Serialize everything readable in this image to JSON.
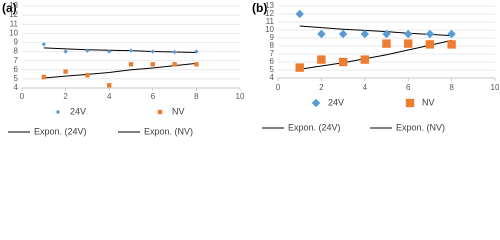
{
  "chart_data": [
    {
      "type": "scatter",
      "title": "(a)",
      "x": [
        1,
        2,
        3,
        4,
        5,
        6,
        7,
        8
      ],
      "series": [
        {
          "name": "24V",
          "color": "#5b9bd5",
          "marker": "diamond",
          "values": [
            8.8,
            8.0,
            8.1,
            8.0,
            8.1,
            8.0,
            7.95,
            8.0
          ]
        },
        {
          "name": "NV",
          "color": "#ed7d31",
          "marker": "square",
          "values": [
            5.2,
            5.8,
            5.4,
            4.3,
            6.6,
            6.6,
            6.6,
            6.6
          ]
        }
      ],
      "trendlines": [
        {
          "name": "Expon. (24V)",
          "color": "#000000",
          "values": [
            8.4,
            8.3,
            8.2,
            8.15,
            8.1,
            8.0,
            7.95,
            7.9
          ]
        },
        {
          "name": "Expon. (NV)",
          "color": "#000000",
          "values": [
            5.1,
            5.3,
            5.5,
            5.7,
            6.0,
            6.2,
            6.45,
            6.7
          ]
        }
      ],
      "xlim": [
        0,
        10
      ],
      "ylim": [
        4,
        13
      ],
      "xticks": [
        0,
        2,
        4,
        6,
        8,
        10
      ],
      "yticks": [
        4,
        5,
        6,
        7,
        8,
        9,
        10,
        11,
        12,
        13
      ],
      "grid": true
    },
    {
      "type": "scatter",
      "title": "(b)",
      "x": [
        1,
        2,
        3,
        4,
        5,
        6,
        7,
        8
      ],
      "series": [
        {
          "name": "24V",
          "color": "#5b9bd5",
          "marker": "diamond",
          "values": [
            12.0,
            9.5,
            9.5,
            9.5,
            9.5,
            9.5,
            9.5,
            9.5
          ]
        },
        {
          "name": "NV",
          "color": "#ed7d31",
          "marker": "square",
          "values": [
            5.3,
            6.3,
            6.0,
            6.3,
            8.3,
            8.3,
            8.2,
            8.2
          ]
        }
      ],
      "trendlines": [
        {
          "name": "Expon. (24V)",
          "color": "#000000",
          "values": [
            10.5,
            10.3,
            10.1,
            9.95,
            9.8,
            9.6,
            9.45,
            9.3
          ]
        },
        {
          "name": "Expon. (NV)",
          "color": "#000000",
          "values": [
            5.1,
            5.5,
            5.9,
            6.4,
            6.9,
            7.5,
            8.1,
            8.7
          ]
        }
      ],
      "xlim": [
        0,
        10
      ],
      "ylim": [
        4,
        13
      ],
      "xticks": [
        0,
        2,
        4,
        6,
        8,
        10
      ],
      "yticks": [
        4,
        5,
        6,
        7,
        8,
        9,
        10,
        11,
        12,
        13
      ],
      "grid": true
    }
  ]
}
